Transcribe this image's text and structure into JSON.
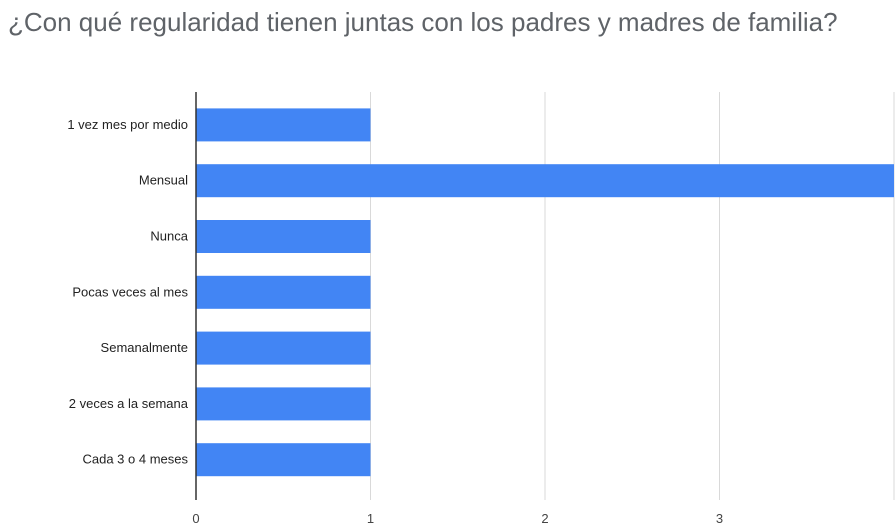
{
  "chart_data": {
    "type": "bar",
    "orientation": "horizontal",
    "title": "¿Con qué regularidad tienen juntas con los padres y madres de familia?",
    "xlabel": "",
    "ylabel": "",
    "categories": [
      "1 vez mes por medio",
      "Mensual",
      "Nunca",
      "Pocas veces al mes",
      "Semanalmente",
      "2 veces a la semana",
      "Cada  3 o 4 meses"
    ],
    "values": [
      1,
      4,
      1,
      1,
      1,
      1,
      1
    ],
    "x_ticks": [
      "0",
      "1",
      "2",
      "3"
    ],
    "xlim": [
      0,
      4
    ],
    "grid": true,
    "bar_color": "#4285f4",
    "grid_color": "#d9d9d9",
    "axis_color": "#333333"
  }
}
